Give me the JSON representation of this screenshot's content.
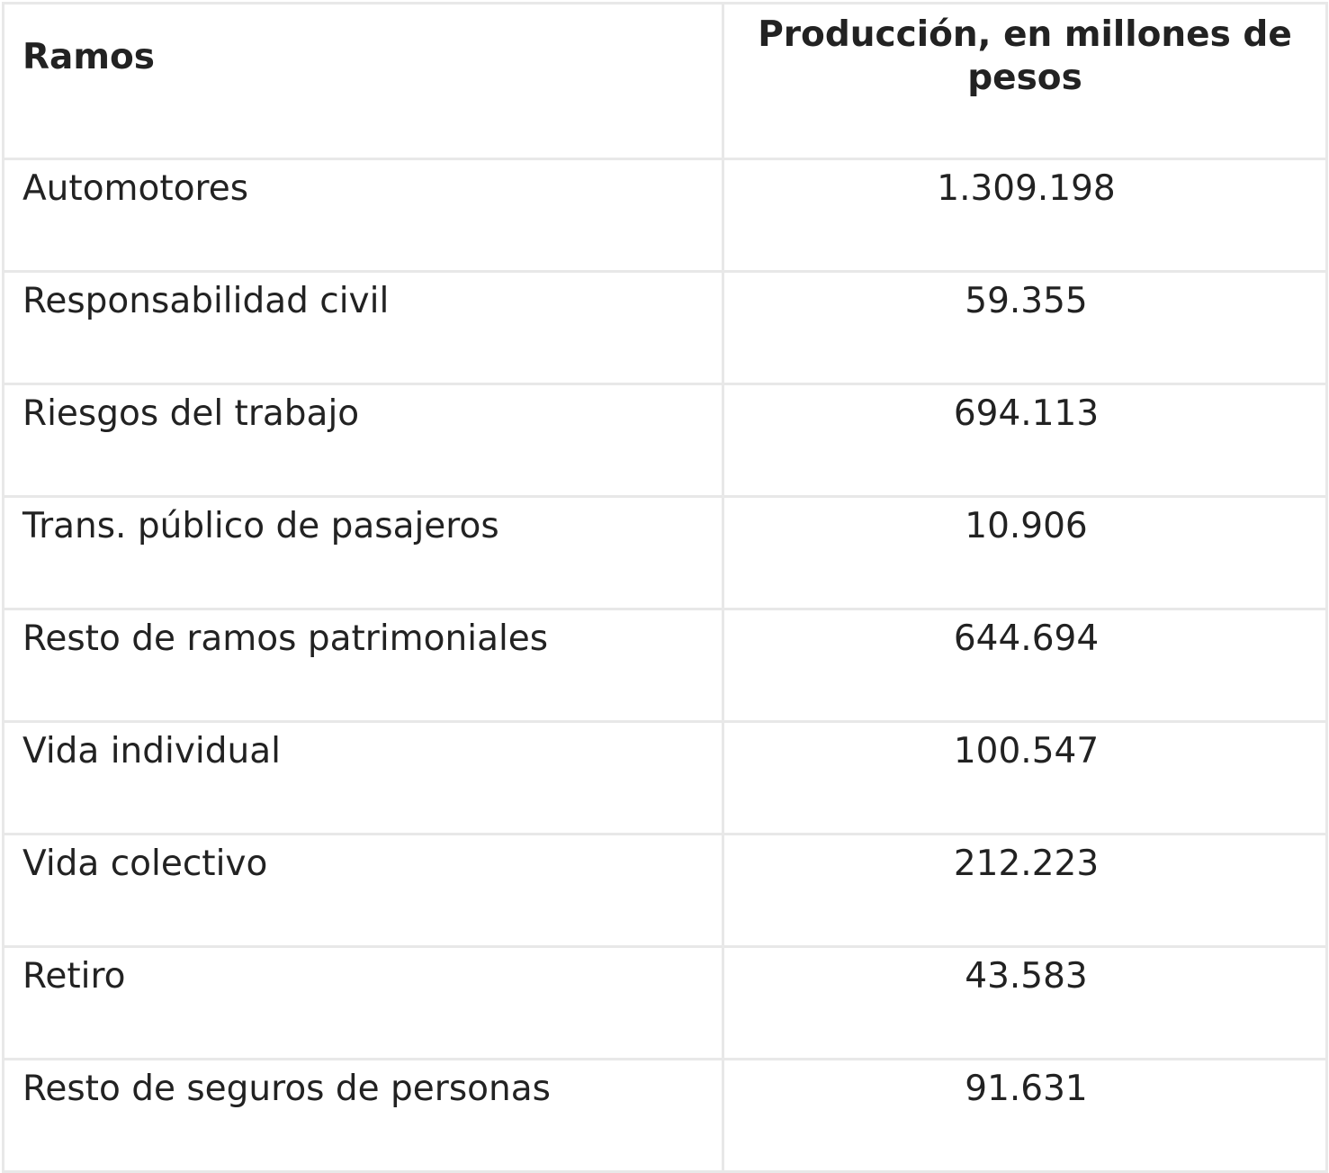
{
  "table": {
    "headers": {
      "ramos": "Ramos",
      "produccion": "Producción, en millones de pesos"
    },
    "rows": [
      {
        "ramo": "Automotores",
        "valor": "1.309.198"
      },
      {
        "ramo": "Responsabilidad civil",
        "valor": "59.355"
      },
      {
        "ramo": "Riesgos del trabajo",
        "valor": "694.113"
      },
      {
        "ramo": "Trans. público de pasajeros",
        "valor": "10.906"
      },
      {
        "ramo": "Resto de ramos patrimoniales",
        "valor": "644.694"
      },
      {
        "ramo": "Vida individual",
        "valor": "100.547"
      },
      {
        "ramo": "Vida colectivo",
        "valor": "212.223"
      },
      {
        "ramo": "Retiro",
        "valor": "43.583"
      },
      {
        "ramo": "Resto de seguros de personas",
        "valor": "91.631"
      }
    ]
  }
}
